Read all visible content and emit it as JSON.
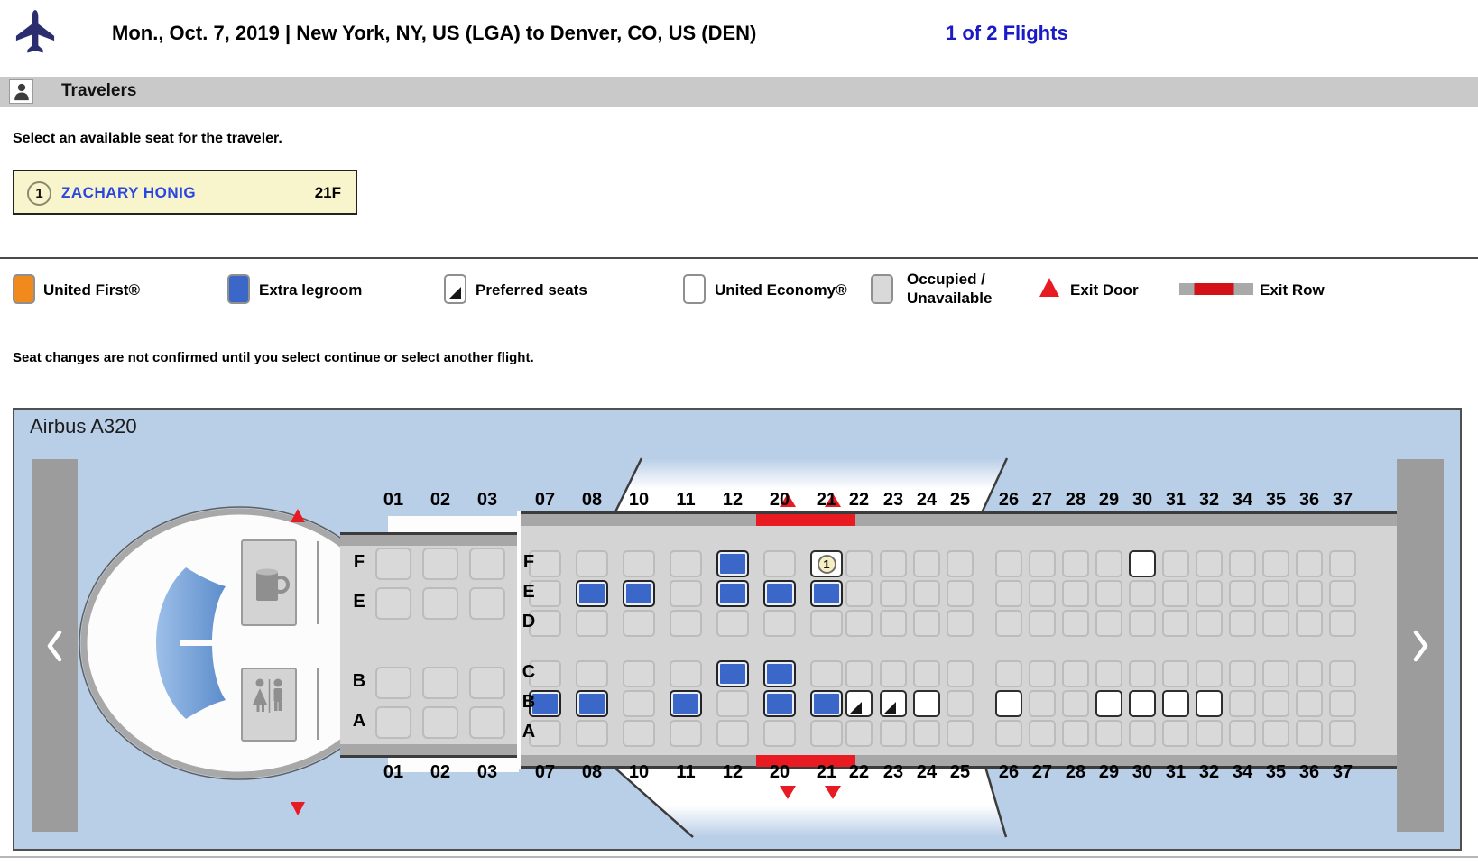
{
  "header": {
    "route": "Mon., Oct. 7, 2019 | New York, NY, US (LGA) to Denver, CO, US (DEN)",
    "flights": "1 of 2 Flights"
  },
  "travelers_bar": {
    "label": "Travelers"
  },
  "instruction": "Select an available seat for the traveler.",
  "traveler": {
    "number": "1",
    "name": "ZACHARY HONIG",
    "seat": "21F"
  },
  "legend": {
    "items": [
      {
        "type": "first",
        "label": "United First®"
      },
      {
        "type": "extra",
        "label": "Extra legroom"
      },
      {
        "type": "pref",
        "label": "Preferred seats"
      },
      {
        "type": "econ",
        "label": "United Economy®"
      },
      {
        "type": "occ",
        "label": "Occupied / Unavailable",
        "line1": "Occupied /",
        "line2": "Unavailable"
      },
      {
        "type": "exit-door",
        "label": "Exit Door"
      },
      {
        "type": "exit-row",
        "label": "Exit Row"
      }
    ]
  },
  "note": "Seat changes are not confirmed until you select continue or select another flight.",
  "seatmap": {
    "aircraft": "Airbus A320",
    "colors": {
      "first": "#F08A1D",
      "extra_legroom": "#3B67C8",
      "economy": "#FFFFFF",
      "occupied": "#D9D9D9",
      "exit_red": "#E81B23",
      "selected_badge_bg": "#F6EFC4",
      "map_bg": "#B9CEE7"
    },
    "first_class": {
      "columns": [
        "01",
        "02",
        "03"
      ],
      "rows": [
        {
          "letter": "F",
          "seats": [
            "occ",
            "occ",
            "occ"
          ]
        },
        {
          "letter": "E",
          "seats": [
            "occ",
            "occ",
            "occ"
          ]
        },
        {
          "letter": "B",
          "seats": [
            "occ",
            "occ",
            "occ"
          ]
        },
        {
          "letter": "A",
          "seats": [
            "occ",
            "occ",
            "occ"
          ]
        }
      ]
    },
    "economy": {
      "columns": [
        "07",
        "08",
        "10",
        "11",
        "12",
        "20",
        "21",
        "22",
        "23",
        "24",
        "25",
        "26",
        "27",
        "28",
        "29",
        "30",
        "31",
        "32",
        "34",
        "35",
        "36",
        "37"
      ],
      "rows": [
        {
          "letter": "F",
          "seats": [
            "occ",
            "occ",
            "occ",
            "occ",
            "extra",
            "occ",
            "sel",
            "occ",
            "occ",
            "occ",
            "occ",
            "occ",
            "occ",
            "occ",
            "occ",
            "econ",
            "occ",
            "occ",
            "occ",
            "occ",
            "occ",
            "occ"
          ]
        },
        {
          "letter": "E",
          "seats": [
            "occ",
            "extra",
            "extra",
            "occ",
            "extra",
            "extra",
            "extra",
            "occ",
            "occ",
            "occ",
            "occ",
            "occ",
            "occ",
            "occ",
            "occ",
            "occ",
            "occ",
            "occ",
            "occ",
            "occ",
            "occ",
            "occ"
          ]
        },
        {
          "letter": "D",
          "seats": [
            "occ",
            "occ",
            "occ",
            "occ",
            "occ",
            "occ",
            "occ",
            "occ",
            "occ",
            "occ",
            "occ",
            "occ",
            "occ",
            "occ",
            "occ",
            "occ",
            "occ",
            "occ",
            "occ",
            "occ",
            "occ",
            "occ"
          ]
        },
        {
          "letter": "C",
          "seats": [
            "occ",
            "occ",
            "occ",
            "occ",
            "extra",
            "extra",
            "occ",
            "occ",
            "occ",
            "occ",
            "occ",
            "occ",
            "occ",
            "occ",
            "occ",
            "occ",
            "occ",
            "occ",
            "occ",
            "occ",
            "occ",
            "occ"
          ]
        },
        {
          "letter": "B",
          "seats": [
            "extra",
            "extra",
            "occ",
            "extra",
            "occ",
            "extra",
            "extra",
            "pref",
            "pref",
            "econ",
            "occ",
            "econ",
            "occ",
            "occ",
            "econ",
            "econ",
            "econ",
            "econ",
            "occ",
            "occ",
            "occ",
            "occ"
          ]
        },
        {
          "letter": "A",
          "seats": [
            "occ",
            "occ",
            "occ",
            "occ",
            "occ",
            "occ",
            "occ",
            "occ",
            "occ",
            "occ",
            "occ",
            "occ",
            "occ",
            "occ",
            "occ",
            "occ",
            "occ",
            "occ",
            "occ",
            "occ",
            "occ",
            "occ"
          ]
        }
      ]
    },
    "nav": {
      "left": "previous-cabin",
      "right": "next-cabin"
    }
  }
}
